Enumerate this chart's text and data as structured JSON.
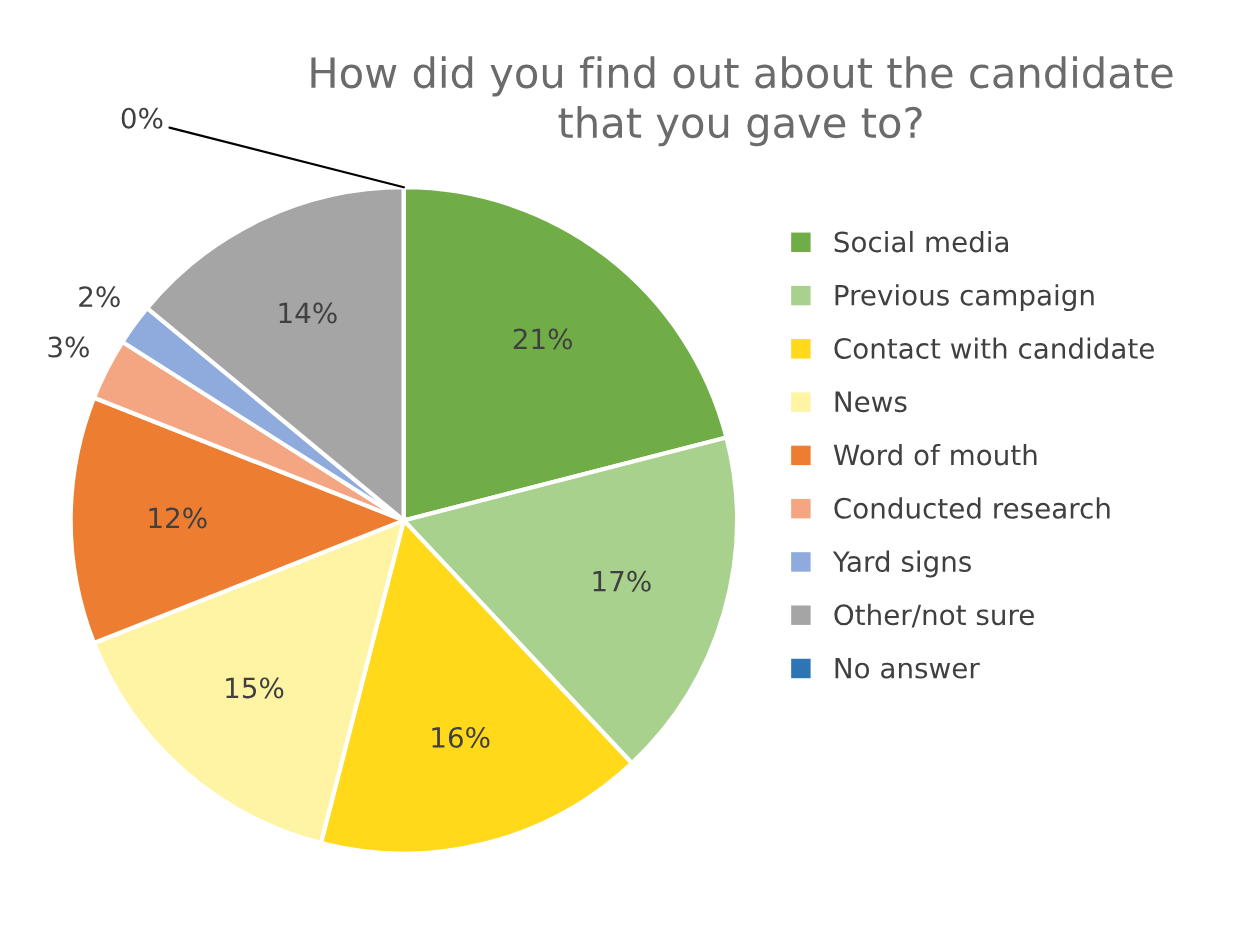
{
  "chart_data": {
    "type": "pie",
    "title": "How did you find out about the candidate\nthat you gave to?",
    "categories": [
      "Social media",
      "Previous campaign",
      "Contact with candidate",
      "News",
      "Word of mouth",
      "Conducted research",
      "Yard signs",
      "Other/not sure",
      "No answer"
    ],
    "values": [
      21,
      17,
      16,
      15,
      12,
      3,
      2,
      14,
      0
    ],
    "value_labels": [
      "21%",
      "17%",
      "16%",
      "15%",
      "12%",
      "3%",
      "2%",
      "14%",
      "0%"
    ],
    "colors": [
      "#70ad47",
      "#a9d18e",
      "#ffd91a",
      "#fff4a3",
      "#ed7d31",
      "#f4a582",
      "#8faadc",
      "#a5a5a5",
      "#2e75b6"
    ],
    "legend": "right"
  }
}
